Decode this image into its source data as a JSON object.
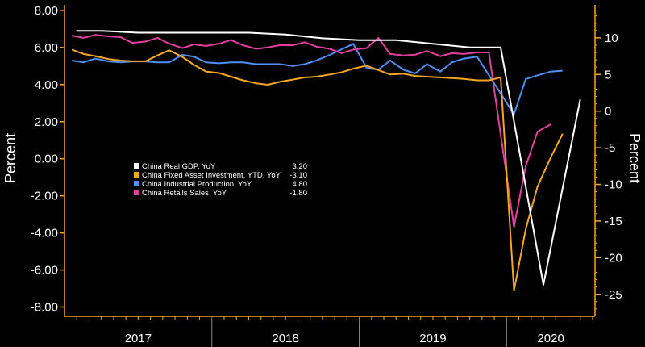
{
  "chart_data": {
    "type": "line",
    "ylabel_left": "Percent",
    "ylabel_right": "Percent",
    "left_axis": {
      "ylim": [
        -8.5,
        8.3
      ],
      "ticks": [
        8.0,
        6.0,
        4.0,
        2.0,
        0.0,
        -2.0,
        -4.0,
        -6.0,
        -8.0
      ],
      "tick_labels": [
        "8.00",
        "6.00",
        "4.00",
        "2.00",
        "0.00",
        "-2.00",
        "-4.00",
        "-6.00",
        "-8.00"
      ]
    },
    "right_axis": {
      "ylim": [
        -28,
        14.5
      ],
      "ticks": [
        10,
        5,
        0,
        -5,
        -10,
        -15,
        -20,
        -25
      ],
      "tick_labels": [
        "10",
        "5",
        "0",
        "-5",
        "-10",
        "-15",
        "-20",
        "-25"
      ]
    },
    "x_labels": [
      "2017",
      "2018",
      "2019",
      "2020"
    ],
    "x_range": [
      2017.0,
      2020.6
    ],
    "year_boundaries": [
      2017.0,
      2018.0,
      2019.0,
      2020.0
    ],
    "series": [
      {
        "name": "China Real GDP, YoY",
        "value": "3.20",
        "color": "#ffffff",
        "axis": "left",
        "points": [
          [
            2017.08,
            6.9
          ],
          [
            2017.25,
            6.9
          ],
          [
            2017.5,
            6.8
          ],
          [
            2017.75,
            6.8
          ],
          [
            2018.0,
            6.8
          ],
          [
            2018.25,
            6.8
          ],
          [
            2018.5,
            6.7
          ],
          [
            2018.75,
            6.5
          ],
          [
            2019.0,
            6.4
          ],
          [
            2019.25,
            6.4
          ],
          [
            2019.5,
            6.2
          ],
          [
            2019.75,
            6.0
          ],
          [
            2019.96,
            6.0
          ],
          [
            2020.25,
            -6.8
          ],
          [
            2020.5,
            3.2
          ]
        ]
      },
      {
        "name": "China Fixed Asset Investment, YTD, YoY",
        "value": "-3.10",
        "color": "#f5a623",
        "axis": "right",
        "points": [
          [
            2017.05,
            8.4
          ],
          [
            2017.13,
            7.8
          ],
          [
            2017.21,
            7.5
          ],
          [
            2017.3,
            7.1
          ],
          [
            2017.38,
            6.9
          ],
          [
            2017.46,
            6.8
          ],
          [
            2017.55,
            6.8
          ],
          [
            2017.63,
            7.6
          ],
          [
            2017.71,
            8.3
          ],
          [
            2017.8,
            7.4
          ],
          [
            2017.88,
            6.3
          ],
          [
            2017.96,
            5.4
          ],
          [
            2018.05,
            5.2
          ],
          [
            2018.13,
            4.7
          ],
          [
            2018.21,
            4.2
          ],
          [
            2018.3,
            3.8
          ],
          [
            2018.38,
            3.6
          ],
          [
            2018.46,
            4.0
          ],
          [
            2018.55,
            4.3
          ],
          [
            2018.63,
            4.6
          ],
          [
            2018.71,
            4.7
          ],
          [
            2018.8,
            5.0
          ],
          [
            2018.88,
            5.3
          ],
          [
            2018.96,
            5.8
          ],
          [
            2019.05,
            6.2
          ],
          [
            2019.13,
            5.6
          ],
          [
            2019.21,
            5.0
          ],
          [
            2019.3,
            5.1
          ],
          [
            2019.38,
            4.8
          ],
          [
            2019.46,
            4.7
          ],
          [
            2019.55,
            4.6
          ],
          [
            2019.63,
            4.5
          ],
          [
            2019.71,
            4.4
          ],
          [
            2019.8,
            4.2
          ],
          [
            2019.88,
            4.2
          ],
          [
            2019.96,
            4.6
          ],
          [
            2020.05,
            -24.5
          ],
          [
            2020.13,
            -16.1
          ],
          [
            2020.21,
            -10.3
          ],
          [
            2020.3,
            -6.3
          ],
          [
            2020.38,
            -3.1
          ]
        ]
      },
      {
        "name": "China Industrial Production, YoY",
        "value": "4.80",
        "color": "#4f8ff7",
        "axis": "left",
        "points": [
          [
            2017.05,
            5.3
          ],
          [
            2017.13,
            5.2
          ],
          [
            2017.21,
            5.4
          ],
          [
            2017.3,
            5.25
          ],
          [
            2017.38,
            5.2
          ],
          [
            2017.46,
            5.25
          ],
          [
            2017.55,
            5.25
          ],
          [
            2017.63,
            5.2
          ],
          [
            2017.71,
            5.2
          ],
          [
            2017.8,
            5.6
          ],
          [
            2017.88,
            5.5
          ],
          [
            2017.96,
            5.2
          ],
          [
            2018.05,
            5.15
          ],
          [
            2018.13,
            5.2
          ],
          [
            2018.21,
            5.2
          ],
          [
            2018.3,
            5.1
          ],
          [
            2018.38,
            5.1
          ],
          [
            2018.46,
            5.1
          ],
          [
            2018.55,
            5.0
          ],
          [
            2018.63,
            5.1
          ],
          [
            2018.71,
            5.3
          ],
          [
            2018.8,
            5.6
          ],
          [
            2018.88,
            5.9
          ],
          [
            2018.96,
            6.2
          ],
          [
            2019.05,
            4.9
          ],
          [
            2019.13,
            4.8
          ],
          [
            2019.21,
            5.3
          ],
          [
            2019.3,
            4.8
          ],
          [
            2019.38,
            4.6
          ],
          [
            2019.46,
            5.1
          ],
          [
            2019.55,
            4.7
          ],
          [
            2019.63,
            5.2
          ],
          [
            2019.71,
            5.4
          ],
          [
            2019.8,
            5.5
          ],
          [
            2020.05,
            2.4
          ],
          [
            2020.13,
            4.3
          ],
          [
            2020.21,
            4.5
          ],
          [
            2020.3,
            4.7
          ],
          [
            2020.38,
            4.75
          ]
        ]
      },
      {
        "name": "China Retails Sales, YoY",
        "value": "-1.80",
        "color": "#e23fa0",
        "axis": "right",
        "points": [
          [
            2017.05,
            10.3
          ],
          [
            2017.13,
            10.0
          ],
          [
            2017.21,
            10.4
          ],
          [
            2017.3,
            10.2
          ],
          [
            2017.38,
            10.1
          ],
          [
            2017.46,
            9.3
          ],
          [
            2017.55,
            9.5
          ],
          [
            2017.63,
            10.0
          ],
          [
            2017.71,
            9.2
          ],
          [
            2017.8,
            8.6
          ],
          [
            2017.88,
            9.1
          ],
          [
            2017.96,
            8.9
          ],
          [
            2018.05,
            9.2
          ],
          [
            2018.13,
            9.7
          ],
          [
            2018.21,
            9.0
          ],
          [
            2018.3,
            8.5
          ],
          [
            2018.38,
            8.7
          ],
          [
            2018.46,
            9.0
          ],
          [
            2018.55,
            9.0
          ],
          [
            2018.63,
            9.4
          ],
          [
            2018.71,
            8.8
          ],
          [
            2018.8,
            8.5
          ],
          [
            2018.88,
            7.9
          ],
          [
            2018.96,
            8.4
          ],
          [
            2019.05,
            8.6
          ],
          [
            2019.13,
            10.0
          ],
          [
            2019.21,
            7.8
          ],
          [
            2019.3,
            7.6
          ],
          [
            2019.38,
            7.7
          ],
          [
            2019.46,
            8.2
          ],
          [
            2019.55,
            7.5
          ],
          [
            2019.63,
            7.9
          ],
          [
            2019.71,
            7.8
          ],
          [
            2019.8,
            8.0
          ],
          [
            2019.88,
            8.0
          ],
          [
            2020.05,
            -15.8
          ],
          [
            2020.13,
            -7.5
          ],
          [
            2020.21,
            -2.8
          ],
          [
            2020.3,
            -1.8
          ]
        ]
      }
    ]
  }
}
